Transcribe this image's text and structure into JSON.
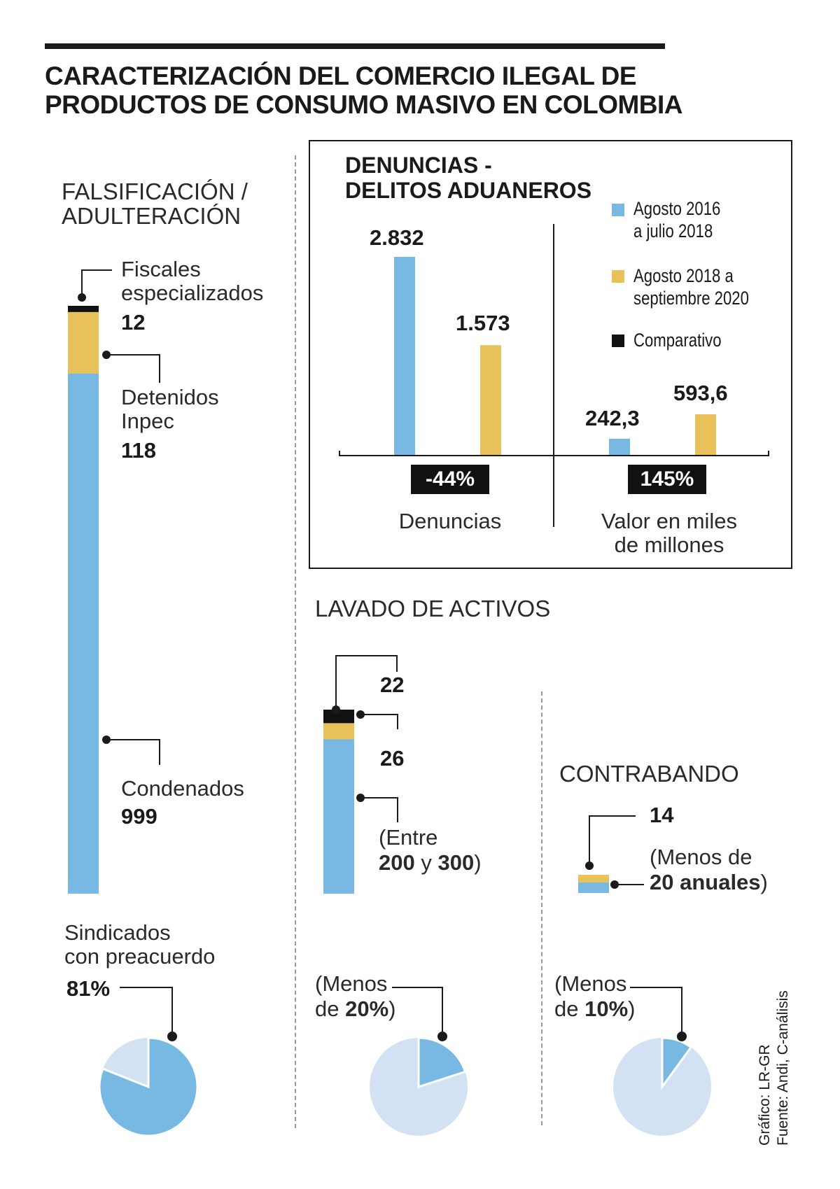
{
  "title": {
    "line1": "CARACTERIZACIÓN DEL COMERCIO ILEGAL DE",
    "line2": "PRODUCTOS DE CONSUMO MASIVO EN COLOMBIA"
  },
  "colors": {
    "blue": "#78b9e3",
    "yellow": "#e8c15b",
    "black": "#111111",
    "light_blue": "#d3e2f2"
  },
  "falsificacion": {
    "heading_line1": "FALSIFICACIÓN /",
    "heading_line2": "ADULTERACIÓN",
    "fiscales_label1": "Fiscales",
    "fiscales_label2": "especializados",
    "fiscales_value": "12",
    "detenidos_label1": "Detenidos",
    "detenidos_label2": "Inpec",
    "detenidos_value": "118",
    "condenados_label": "Condenados",
    "condenados_value": "999",
    "pie_label1": "Sindicados",
    "pie_label2": "con preacuerdo",
    "pie_value": "81%"
  },
  "denuncias": {
    "title_line1": "DENUNCIAS -",
    "title_line2": "DELITOS ADUANEROS",
    "legend1_line1": "Agosto 2016",
    "legend1_line2": "a julio 2018",
    "legend2_line1": "Agosto 2018 a",
    "legend2_line2": "septiembre 2020",
    "legend3": "Comparativo",
    "group1_label": "Denuncias",
    "group1_change": "-44%",
    "group1_v1": "2.832",
    "group1_v2": "1.573",
    "group2_label1": "Valor en miles",
    "group2_label2": "de millones",
    "group2_change": "145%",
    "group2_v1": "242,3",
    "group2_v2": "593,6"
  },
  "lavado": {
    "heading": "LAVADO DE ACTIVOS",
    "value_top": "22",
    "value_mid": "26",
    "range_open": "(Entre",
    "range_low": "200",
    "range_and": "y",
    "range_high": "300",
    "range_close": ")",
    "pie_open": "(Menos",
    "pie_de": "de",
    "pie_value": "20%",
    "pie_close": ")"
  },
  "contrabando": {
    "heading": "CONTRABANDO",
    "value_top": "14",
    "range_open": "(Menos de",
    "range_value": "20 anuales",
    "range_close": ")",
    "pie_open": "(Menos",
    "pie_de": "de",
    "pie_value": "10%",
    "pie_close": ")"
  },
  "credits": {
    "line1": "Gráfico: LR-GR",
    "line2": "Fuente: Andi, C-análisis"
  },
  "chart_data": [
    {
      "type": "bar",
      "title": "FALSIFICACIÓN / ADULTERACIÓN",
      "categories": [
        "Fiscales especializados",
        "Detenidos Inpec",
        "Condenados"
      ],
      "values": [
        12,
        118,
        999
      ]
    },
    {
      "type": "bar",
      "title": "DENUNCIAS - DELITOS ADUANEROS",
      "categories": [
        "Denuncias",
        "Valor en miles de millones"
      ],
      "series": [
        {
          "name": "Agosto 2016 a julio 2018",
          "values": [
            2832,
            242.3
          ]
        },
        {
          "name": "Agosto 2018 a septiembre 2020",
          "values": [
            1573,
            593.6
          ]
        }
      ],
      "comparativo": [
        "-44%",
        "145%"
      ]
    },
    {
      "type": "bar",
      "title": "LAVADO DE ACTIVOS",
      "categories": [
        "22",
        "26",
        "Entre 200 y 300"
      ],
      "values": [
        22,
        26,
        250
      ]
    },
    {
      "type": "bar",
      "title": "CONTRABANDO",
      "categories": [
        "14",
        "Menos de 20 anuales"
      ],
      "values": [
        14,
        20
      ]
    },
    {
      "type": "pie",
      "title": "Sindicados con preacuerdo",
      "groups": [
        "FALSIFICACIÓN / ADULTERACIÓN",
        "LAVADO DE ACTIVOS",
        "CONTRABANDO"
      ],
      "values": [
        81,
        20,
        10
      ],
      "unit": "%"
    }
  ]
}
